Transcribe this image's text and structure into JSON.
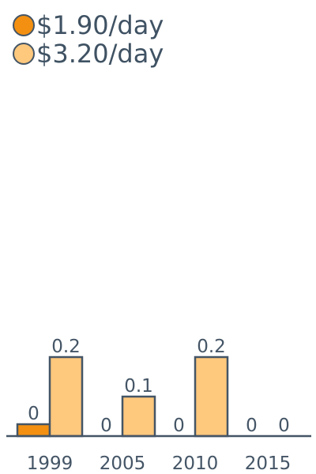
{
  "chart_data": {
    "type": "bar",
    "categories": [
      "1999",
      "2005",
      "2010",
      "2015"
    ],
    "series": [
      {
        "name": "$1.90/day",
        "color": "#f39011",
        "values": [
          0.03,
          0,
          0,
          0
        ],
        "labels": [
          "0",
          "0",
          "0",
          "0"
        ]
      },
      {
        "name": "$3.20/day",
        "color": "#fec87d",
        "values": [
          0.2,
          0.1,
          0.2,
          0
        ],
        "labels": [
          "0.2",
          "0.1",
          "0.2",
          "0"
        ]
      }
    ],
    "ylim": [
      0,
      0.2
    ],
    "grid": false,
    "legend": "top-left",
    "title": "",
    "xlabel": "",
    "ylabel": ""
  },
  "colors": {
    "axis": "#445566",
    "text": "#445566"
  }
}
